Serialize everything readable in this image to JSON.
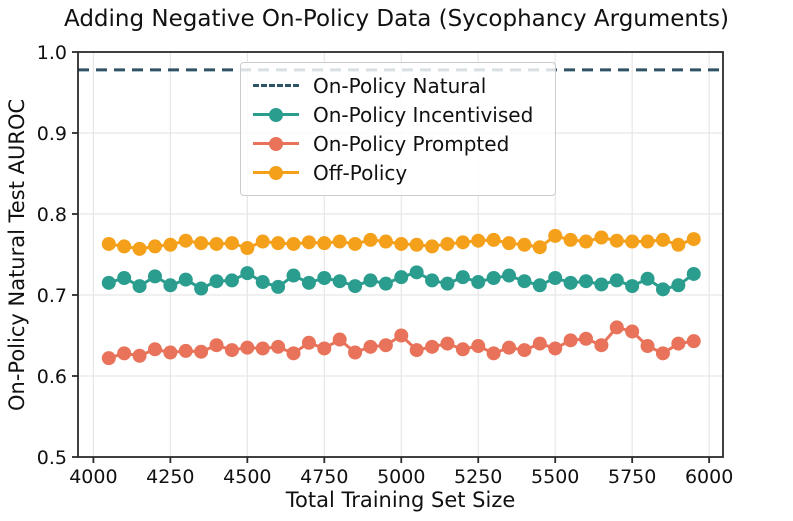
{
  "chart_data": {
    "type": "line",
    "title": "Adding Negative On-Policy Data (Sycophancy Arguments)",
    "xlabel": "Total Training Set Size",
    "ylabel": "On-Policy Natural Test AUROC",
    "xlim": [
      3950,
      6045
    ],
    "ylim": [
      0.5,
      1.0
    ],
    "grid": true,
    "legend_position": "upper left inside",
    "x_ticks": [
      4000,
      4250,
      4500,
      4750,
      5000,
      5250,
      5500,
      5750,
      6000
    ],
    "x_tick_labels": [
      "4000",
      "4250",
      "4500",
      "4750",
      "5000",
      "5250",
      "5500",
      "5750",
      "6000"
    ],
    "y_ticks": [
      0.5,
      0.6,
      0.7,
      0.8,
      0.9,
      1.0
    ],
    "y_tick_labels": [
      "0.5",
      "0.6",
      "0.7",
      "0.8",
      "0.9",
      "1.0"
    ],
    "baseline": {
      "name": "On-Policy Natural",
      "value": 0.978,
      "color": "#2f5265",
      "style": "dashed"
    },
    "x": [
      4050,
      4100,
      4150,
      4200,
      4250,
      4300,
      4350,
      4400,
      4450,
      4500,
      4550,
      4600,
      4650,
      4700,
      4750,
      4800,
      4850,
      4900,
      4950,
      5000,
      5050,
      5100,
      5150,
      5200,
      5250,
      5300,
      5350,
      5400,
      5450,
      5500,
      5550,
      5600,
      5650,
      5700,
      5750,
      5800,
      5850,
      5900,
      5950
    ],
    "series": [
      {
        "name": "On-Policy Incentivised",
        "color": "#2a9d8f",
        "values": [
          0.715,
          0.721,
          0.711,
          0.723,
          0.712,
          0.719,
          0.708,
          0.717,
          0.718,
          0.727,
          0.716,
          0.71,
          0.724,
          0.715,
          0.721,
          0.717,
          0.711,
          0.718,
          0.714,
          0.722,
          0.728,
          0.718,
          0.714,
          0.722,
          0.716,
          0.721,
          0.724,
          0.717,
          0.712,
          0.721,
          0.715,
          0.717,
          0.713,
          0.718,
          0.711,
          0.72,
          0.707,
          0.712,
          0.726
        ]
      },
      {
        "name": "On-Policy Prompted",
        "color": "#e8735a",
        "values": [
          0.622,
          0.628,
          0.625,
          0.633,
          0.629,
          0.631,
          0.63,
          0.638,
          0.632,
          0.635,
          0.634,
          0.636,
          0.628,
          0.641,
          0.634,
          0.645,
          0.629,
          0.636,
          0.638,
          0.65,
          0.632,
          0.636,
          0.64,
          0.633,
          0.637,
          0.628,
          0.635,
          0.632,
          0.64,
          0.634,
          0.644,
          0.646,
          0.638,
          0.66,
          0.655,
          0.637,
          0.628,
          0.64,
          0.643
        ]
      },
      {
        "name": "Off-Policy",
        "color": "#f5a01b",
        "values": [
          0.763,
          0.76,
          0.757,
          0.76,
          0.762,
          0.767,
          0.764,
          0.763,
          0.764,
          0.758,
          0.766,
          0.764,
          0.763,
          0.765,
          0.764,
          0.766,
          0.763,
          0.768,
          0.766,
          0.763,
          0.762,
          0.76,
          0.763,
          0.765,
          0.767,
          0.768,
          0.764,
          0.762,
          0.759,
          0.773,
          0.768,
          0.766,
          0.771,
          0.767,
          0.766,
          0.766,
          0.768,
          0.762,
          0.769
        ]
      }
    ],
    "style": {
      "grid_color": "#e7e7e7",
      "spine_color": "#2b2b2b",
      "tick_label_color": "#111111",
      "marker_radius": 7,
      "line_width": 3
    }
  }
}
